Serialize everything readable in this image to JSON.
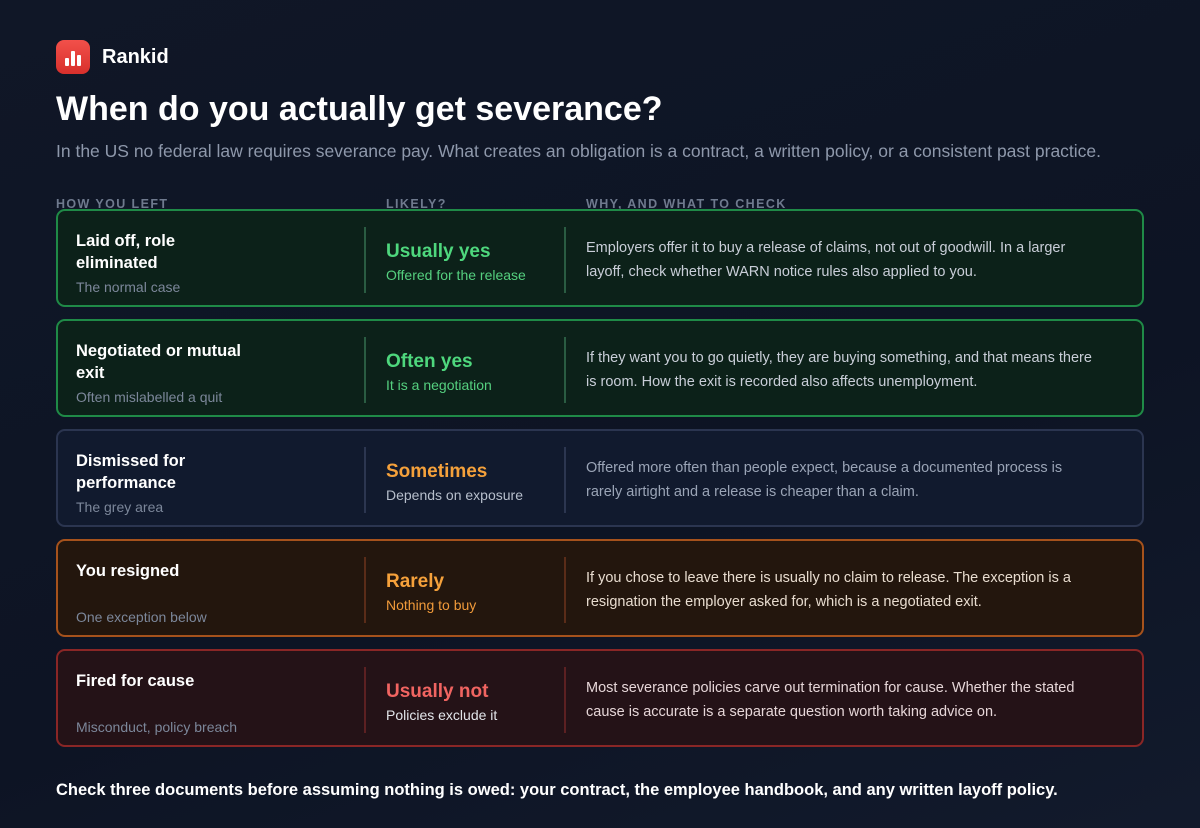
{
  "brand": {
    "name": "Rankid",
    "logo_icon": "bar-chart-icon",
    "logo_color": "#e5393a"
  },
  "title": "When do you actually get severance?",
  "subtitle": "In the US no federal law requires severance pay. What creates an obligation is a contract, a written policy, or a consistent past practice.",
  "columns": {
    "how_you_left": "HOW YOU LEFT",
    "likely": "LIKELY?",
    "why": "WHY, AND WHAT TO CHECK"
  },
  "rows": [
    {
      "situation": "Laid off, role eliminated",
      "note": "The normal case",
      "verdict": "Usually yes",
      "verdict_sub": "Offered for the release",
      "explanation": "Employers offer it to buy a release of claims, not out of goodwill. In a larger layoff, check whether WARN notice rules also applied to you.",
      "tone": "green"
    },
    {
      "situation": "Negotiated or mutual exit",
      "note": "Often mislabelled a quit",
      "verdict": "Often yes",
      "verdict_sub": "It is a negotiation",
      "explanation": "If they want you to go quietly, they are buying something, and that means there is room. How the exit is recorded also affects unemployment.",
      "tone": "green"
    },
    {
      "situation": "Dismissed for performance",
      "note": "The grey area",
      "verdict": "Sometimes",
      "verdict_sub": "Depends on exposure",
      "explanation": "Offered more often than people expect, because a documented process is rarely airtight and a release is cheaper than a claim.",
      "tone": "neutral"
    },
    {
      "situation": "You resigned",
      "note": "One exception below",
      "verdict": "Rarely",
      "verdict_sub": "Nothing to buy",
      "explanation": "If you chose to leave there is usually no claim to release. The exception is a resignation the employer asked for, which is a negotiated exit.",
      "tone": "orange"
    },
    {
      "situation": "Fired for cause",
      "note": "Misconduct, policy breach",
      "verdict": "Usually not",
      "verdict_sub": "Policies exclude it",
      "explanation": "Most severance policies carve out termination for cause. Whether the stated cause is accurate is a separate question worth taking advice on.",
      "tone": "red"
    }
  ],
  "footer": "Check three documents before assuming nothing is owed: your contract, the employee handbook, and any written layoff policy."
}
